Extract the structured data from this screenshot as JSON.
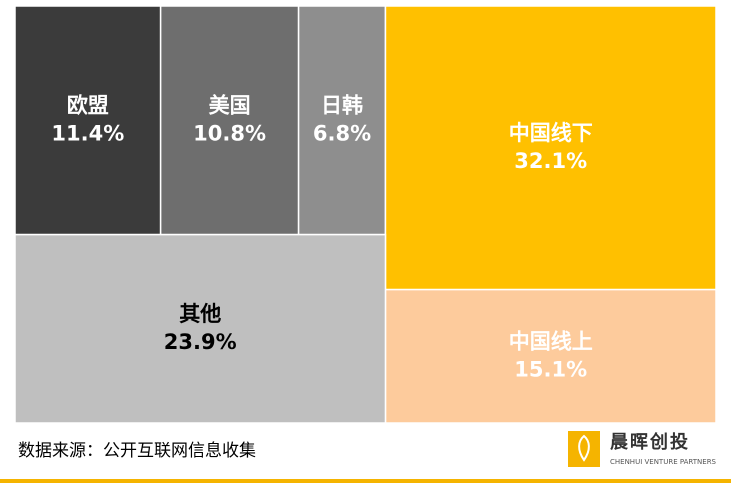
{
  "chart_data": {
    "type": "treemap",
    "categories": [
      "欧盟",
      "美国",
      "日韩",
      "中国线下",
      "中国线上",
      "其他"
    ],
    "values": [
      11.4,
      10.8,
      6.8,
      32.1,
      15.1,
      23.9
    ],
    "value_labels": [
      "11.4%",
      "10.8%",
      "6.8%",
      "32.1%",
      "15.1%",
      "23.9%"
    ],
    "colors": [
      "#3b3b3b",
      "#6e6e6e",
      "#8e8e8e",
      "#ffc000",
      "#fdcb9c",
      "#bfbfbf"
    ],
    "source": "数据来源：公开互联网信息收集",
    "logo": {
      "name": "晨晖创投",
      "subtitle": "CHENHUI VENTURE PARTNERS"
    }
  }
}
